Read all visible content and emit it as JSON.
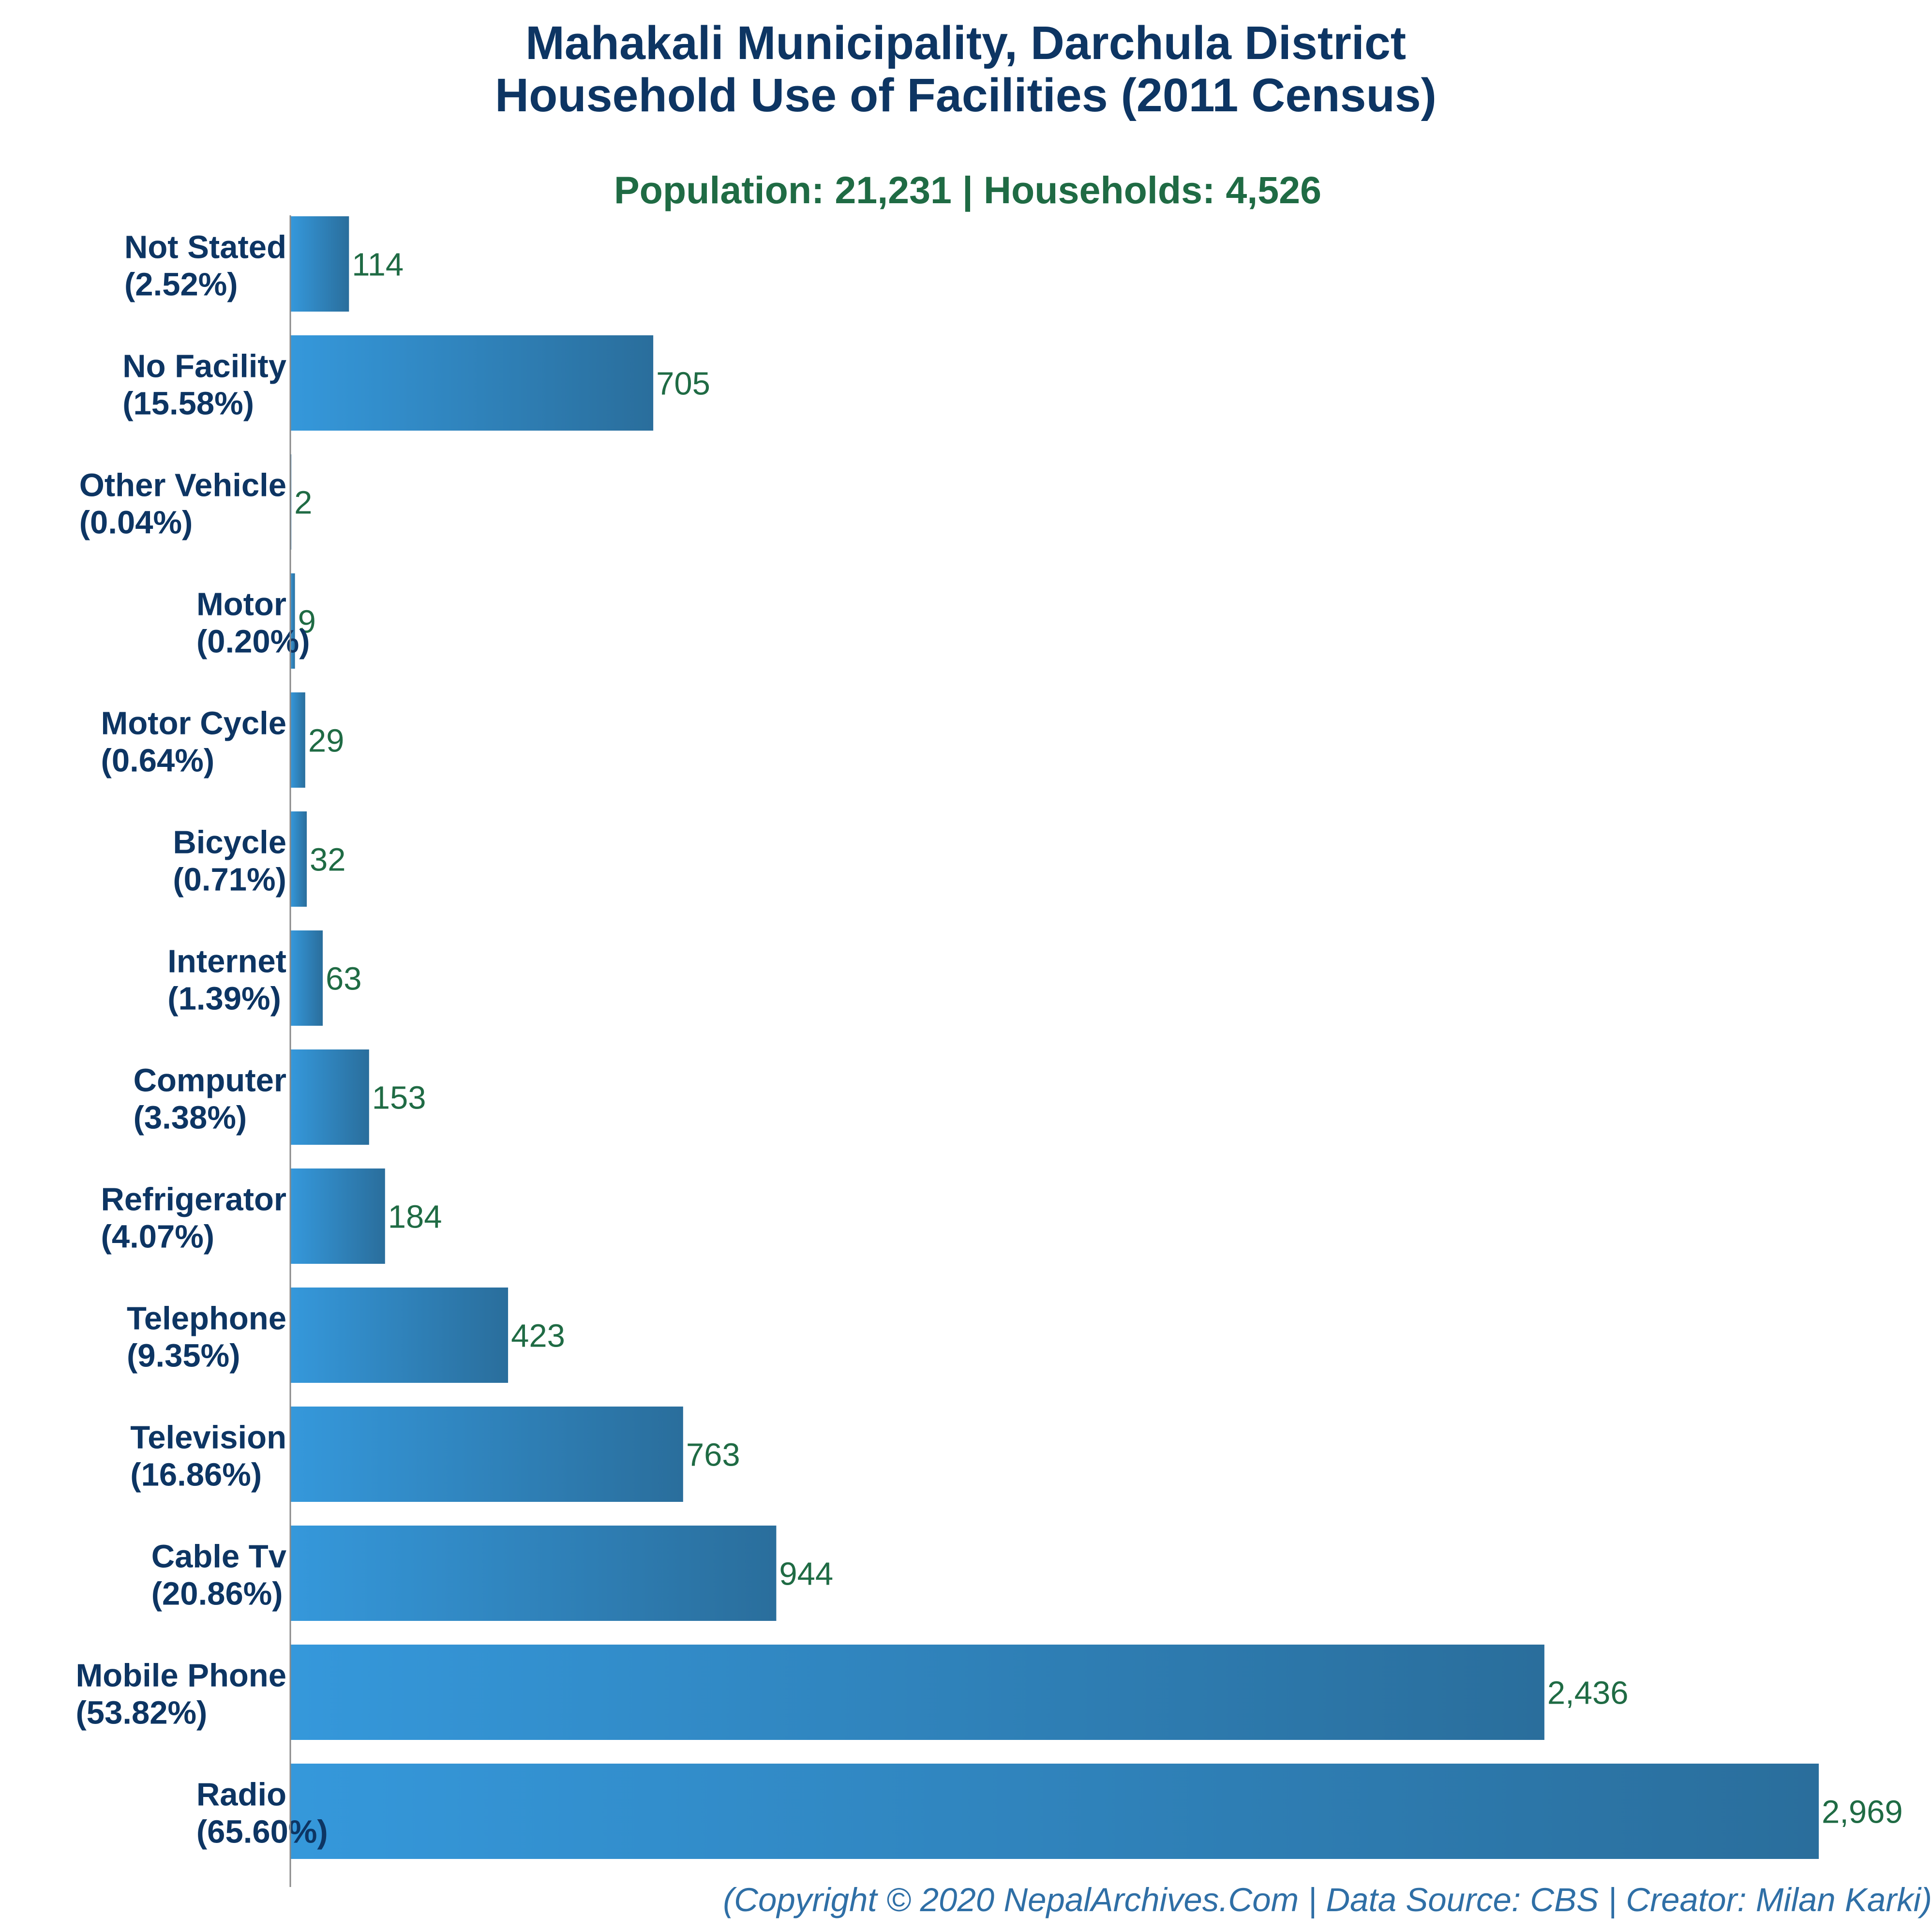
{
  "chart_data": {
    "type": "bar",
    "orientation": "horizontal",
    "title_lines": [
      "Mahakali Municipality, Darchula District",
      "Household Use of Facilities (2011 Census)"
    ],
    "subtitle": "Population: 21,231 | Households: 4,526",
    "caption": "(Copyright © 2020 NepalArchives.Com | Data Source: CBS | Creator: Milan Karki)",
    "xlim": [
      0,
      2969
    ],
    "grid": false,
    "legend": "none",
    "categories": [
      "Not Stated",
      "No Facility",
      "Other Vehicle",
      "Motor",
      "Motor Cycle",
      "Bicycle",
      "Internet",
      "Computer",
      "Refrigerator",
      "Telephone",
      "Television",
      "Cable Tv",
      "Mobile Phone",
      "Radio"
    ],
    "percent_labels": [
      "(2.52%)",
      "(15.58%)",
      "(0.04%)",
      "(0.20%)",
      "(0.64%)",
      "(0.71%)",
      "(1.39%)",
      "(3.38%)",
      "(4.07%)",
      "(9.35%)",
      "(16.86%)",
      "(20.86%)",
      "(53.82%)",
      "(65.60%)"
    ],
    "values": [
      114,
      705,
      2,
      9,
      29,
      32,
      63,
      153,
      184,
      423,
      763,
      944,
      2436,
      2969
    ],
    "value_labels": [
      "114",
      "705",
      "2",
      "9",
      "29",
      "32",
      "63",
      "153",
      "184",
      "423",
      "763",
      "944",
      "2,436",
      "2,969"
    ],
    "colors": {
      "bar_start": "#3598db",
      "bar_end": "#2a6e9c",
      "title": "#0d3563",
      "subtitle": "#1f6b44",
      "value_label": "#1f6b44",
      "caption": "#2f6fa6",
      "axis": "#888888"
    }
  }
}
